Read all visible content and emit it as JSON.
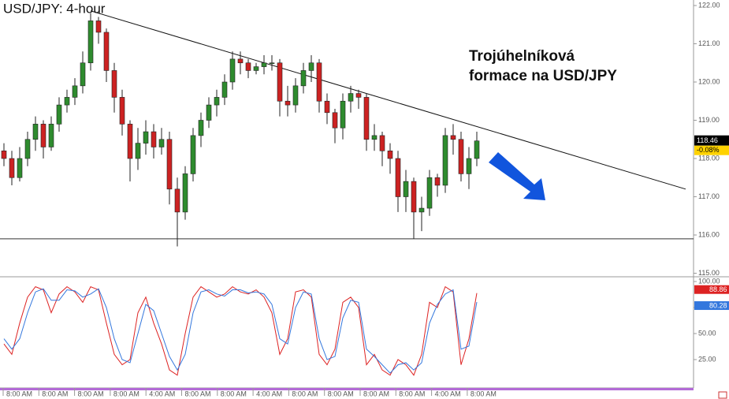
{
  "chart_data": {
    "type": "candlestick",
    "title": "USD/JPY: 4-hour",
    "annotation": [
      "Trojúhelníková",
      "formace na USD/JPY"
    ],
    "open": [
      118.2,
      118.0,
      117.5,
      118.0,
      118.5,
      118.9,
      118.3,
      118.9,
      119.4,
      119.6,
      119.9,
      120.5,
      121.6,
      121.3,
      120.3,
      119.6,
      118.9,
      118.0,
      118.4,
      118.7,
      118.3,
      118.5,
      117.2,
      116.6,
      117.6,
      118.6,
      119.0,
      119.4,
      119.6,
      120.0,
      120.6,
      120.5,
      120.3,
      120.4,
      120.5,
      120.5,
      119.5,
      119.4,
      119.9,
      120.3,
      120.5,
      119.5,
      119.2,
      118.8,
      119.5,
      119.7,
      119.6,
      118.5,
      118.6,
      118.2,
      118.0,
      117.0,
      117.4,
      116.6,
      116.7,
      117.5,
      117.3,
      118.6,
      118.5,
      117.6,
      118.0
    ],
    "high": [
      118.4,
      118.2,
      118.3,
      118.7,
      119.1,
      119.0,
      119.1,
      119.6,
      119.8,
      120.1,
      120.8,
      121.8,
      121.7,
      121.4,
      120.5,
      119.8,
      119.0,
      118.8,
      119.0,
      118.9,
      118.8,
      118.7,
      117.5,
      117.8,
      118.8,
      119.2,
      119.6,
      119.8,
      120.2,
      120.8,
      120.8,
      120.6,
      120.5,
      120.7,
      120.7,
      120.6,
      119.9,
      120.1,
      120.5,
      120.7,
      120.6,
      119.7,
      119.3,
      119.7,
      119.9,
      119.8,
      119.7,
      118.9,
      118.7,
      118.4,
      118.2,
      117.7,
      117.5,
      117.0,
      117.7,
      117.6,
      118.8,
      118.9,
      118.7,
      118.3,
      118.7
    ],
    "low": [
      117.8,
      117.3,
      117.4,
      117.8,
      118.2,
      118.0,
      118.2,
      118.7,
      119.2,
      119.4,
      119.7,
      120.3,
      121.0,
      120.0,
      119.2,
      118.6,
      117.4,
      117.7,
      118.1,
      118.0,
      118.1,
      116.8,
      115.7,
      116.4,
      117.4,
      118.3,
      118.8,
      119.1,
      119.4,
      119.8,
      120.2,
      120.1,
      120.2,
      120.2,
      120.3,
      119.1,
      119.1,
      119.2,
      119.7,
      120.0,
      119.2,
      118.9,
      118.4,
      118.5,
      119.2,
      119.3,
      118.2,
      118.2,
      117.8,
      117.6,
      116.6,
      116.6,
      115.9,
      116.1,
      116.5,
      117.0,
      117.1,
      118.1,
      117.4,
      117.2,
      117.8
    ],
    "close": [
      118.0,
      117.5,
      118.0,
      118.5,
      118.9,
      118.3,
      118.9,
      119.4,
      119.6,
      119.9,
      120.5,
      121.6,
      121.3,
      120.3,
      119.6,
      118.9,
      118.0,
      118.4,
      118.7,
      118.3,
      118.5,
      117.2,
      116.6,
      117.6,
      118.6,
      119.0,
      119.4,
      119.6,
      120.0,
      120.6,
      120.5,
      120.3,
      120.4,
      120.5,
      120.5,
      119.5,
      119.4,
      119.9,
      120.3,
      120.5,
      119.5,
      119.2,
      118.8,
      119.5,
      119.7,
      119.6,
      118.5,
      118.6,
      118.2,
      118.0,
      117.0,
      117.4,
      116.6,
      116.7,
      117.5,
      117.3,
      118.6,
      118.5,
      117.6,
      118.0,
      118.46
    ],
    "last_change": "-0.08%",
    "up_color": "#2e8b2e",
    "down_color": "#cc2222",
    "trendline": [
      121.86,
      117.2
    ],
    "support": 115.9,
    "ylim": [
      115,
      122
    ],
    "yticks": [
      {
        "value": 115,
        "label": "115.00"
      },
      {
        "value": 116,
        "label": "116.00"
      },
      {
        "value": 117,
        "label": "117.00"
      },
      {
        "value": 118,
        "label": "118.00"
      },
      {
        "value": 119,
        "label": "119.00"
      },
      {
        "value": 120,
        "label": "120.00"
      },
      {
        "value": 121,
        "label": "121.00"
      },
      {
        "value": 122,
        "label": "122.00"
      }
    ],
    "x_labels": [
      "8:00 AM",
      "8:00 AM",
      "8:00 AM",
      "8:00 AM",
      "4:00 AM",
      "8:00 AM",
      "8:00 AM",
      "4:00 AM",
      "8:00 AM",
      "8:00 AM",
      "8:00 AM",
      "8:00 AM",
      "4:00 AM",
      "8:00 AM"
    ],
    "indicator": {
      "type": "line",
      "ylim": [
        0,
        100
      ],
      "yticks": [
        {
          "value": 25,
          "label": "25.00"
        },
        {
          "value": 50,
          "label": "50.00"
        },
        {
          "value": 75,
          "label": "75.00"
        },
        {
          "value": 100,
          "label": "100.00"
        }
      ],
      "series": [
        {
          "color": "#dd2222",
          "values": [
            40,
            30,
            60,
            85,
            95,
            92,
            70,
            88,
            95,
            90,
            80,
            95,
            92,
            60,
            30,
            20,
            25,
            70,
            85,
            60,
            40,
            15,
            10,
            50,
            85,
            95,
            90,
            85,
            88,
            95,
            90,
            88,
            92,
            85,
            70,
            30,
            45,
            90,
            92,
            85,
            30,
            20,
            35,
            80,
            85,
            75,
            20,
            30,
            15,
            10,
            25,
            20,
            10,
            30,
            80,
            75,
            95,
            90,
            20,
            45,
            88.86
          ]
        },
        {
          "color": "#3377dd",
          "values": [
            45,
            35,
            45,
            70,
            90,
            93,
            82,
            82,
            92,
            91,
            85,
            88,
            93,
            75,
            45,
            25,
            22,
            50,
            78,
            72,
            50,
            28,
            15,
            30,
            70,
            90,
            92,
            88,
            86,
            92,
            92,
            89,
            90,
            88,
            78,
            45,
            40,
            75,
            90,
            88,
            45,
            25,
            28,
            65,
            82,
            80,
            35,
            28,
            20,
            12,
            20,
            22,
            15,
            22,
            60,
            78,
            88,
            92,
            35,
            38,
            80.28
          ]
        }
      ]
    }
  }
}
